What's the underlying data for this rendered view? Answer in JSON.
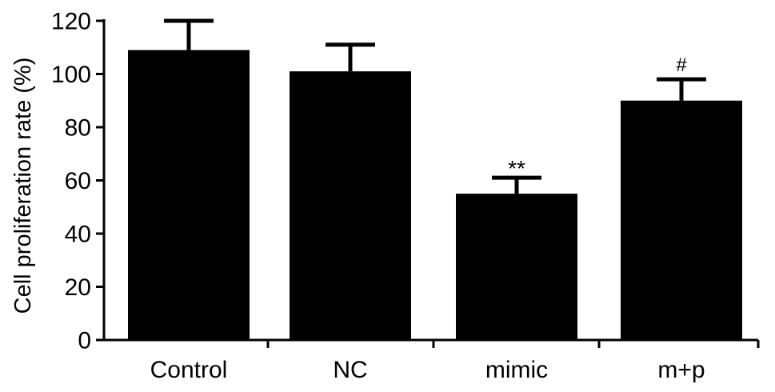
{
  "chart_data": {
    "type": "bar",
    "title": "",
    "xlabel": "",
    "ylabel": "Cell proliferation rate (%)",
    "categories": [
      "Control",
      "NC",
      "mimic",
      "m+p"
    ],
    "values": [
      109,
      101,
      55,
      90
    ],
    "errors": [
      11,
      10,
      6,
      8
    ],
    "annotations": [
      "",
      "",
      "**",
      "#"
    ],
    "ylim": [
      0,
      120
    ],
    "yticks": [
      "0",
      "20",
      "40",
      "60",
      "80",
      "100",
      "120"
    ],
    "bar_color": "#000000",
    "grid": false,
    "legend": "none"
  }
}
